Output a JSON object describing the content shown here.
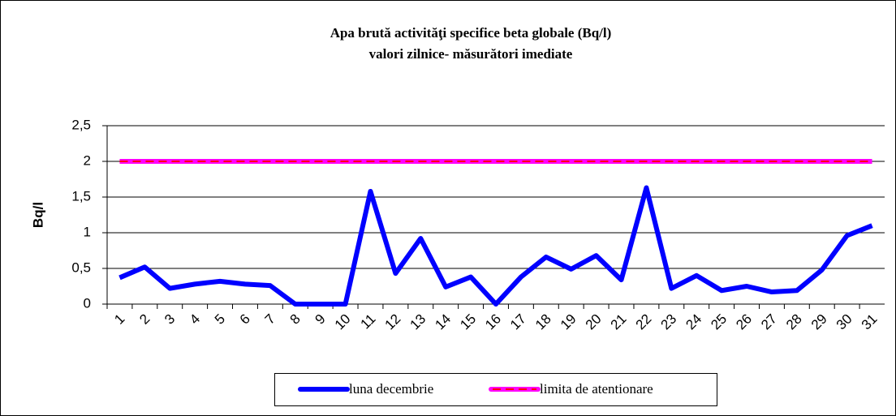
{
  "chart_data": {
    "type": "line",
    "title": "Apa brută activităţi specifice beta globale (Bq/l)",
    "subtitle": "valori zilnice- măsurători imediate",
    "y_label": "Bq/l",
    "categories": [
      "1",
      "2",
      "3",
      "4",
      "5",
      "6",
      "7",
      "8",
      "9",
      "10",
      "11",
      "12",
      "13",
      "14",
      "15",
      "16",
      "17",
      "18",
      "19",
      "20",
      "21",
      "22",
      "23",
      "24",
      "25",
      "26",
      "27",
      "28",
      "29",
      "30",
      "31"
    ],
    "series": [
      {
        "name": "luna decembrie",
        "color": "#0000ff",
        "values": [
          0.37,
          0.52,
          0.22,
          0.28,
          0.32,
          0.28,
          0.26,
          0,
          0,
          0,
          1.58,
          0.43,
          0.92,
          0.24,
          0.38,
          0,
          0.38,
          0.66,
          0.49,
          0.68,
          0.34,
          1.63,
          0.22,
          0.4,
          0.19,
          0.25,
          0.17,
          0.19,
          0.48,
          0.96,
          1.1
        ]
      },
      {
        "name": "limita de atentionare",
        "color": "#ff00ff",
        "dash_color": "#ff0000",
        "values": [
          2,
          2,
          2,
          2,
          2,
          2,
          2,
          2,
          2,
          2,
          2,
          2,
          2,
          2,
          2,
          2,
          2,
          2,
          2,
          2,
          2,
          2,
          2,
          2,
          2,
          2,
          2,
          2,
          2,
          2,
          2
        ]
      }
    ],
    "ylim": [
      0,
      2.5
    ],
    "yticks": [
      0,
      {
        "value": 0.5,
        "label": "0,5"
      },
      1,
      {
        "value": 1.5,
        "label": "1,5"
      },
      2,
      {
        "value": 2.5,
        "label": "2,5"
      }
    ],
    "grid": true,
    "legend": "bottom"
  }
}
